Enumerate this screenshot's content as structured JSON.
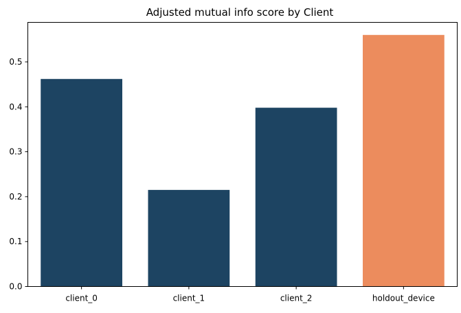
{
  "chart_data": {
    "type": "bar",
    "title": "Adjusted mutual info score by Client",
    "xlabel": "",
    "ylabel": "",
    "categories": [
      "client_0",
      "client_1",
      "client_2",
      "holdout_device"
    ],
    "values": [
      0.462,
      0.215,
      0.398,
      0.56
    ],
    "bar_colors": [
      "#1d4462",
      "#1d4462",
      "#1d4462",
      "#ec8c5d"
    ],
    "ylim": [
      0,
      0.588
    ],
    "yticks": [
      0.0,
      0.1,
      0.2,
      0.3,
      0.4,
      0.5
    ],
    "ytick_labels": [
      "0.0",
      "0.1",
      "0.2",
      "0.3",
      "0.4",
      "0.5"
    ],
    "grid": false,
    "legend": "none"
  }
}
